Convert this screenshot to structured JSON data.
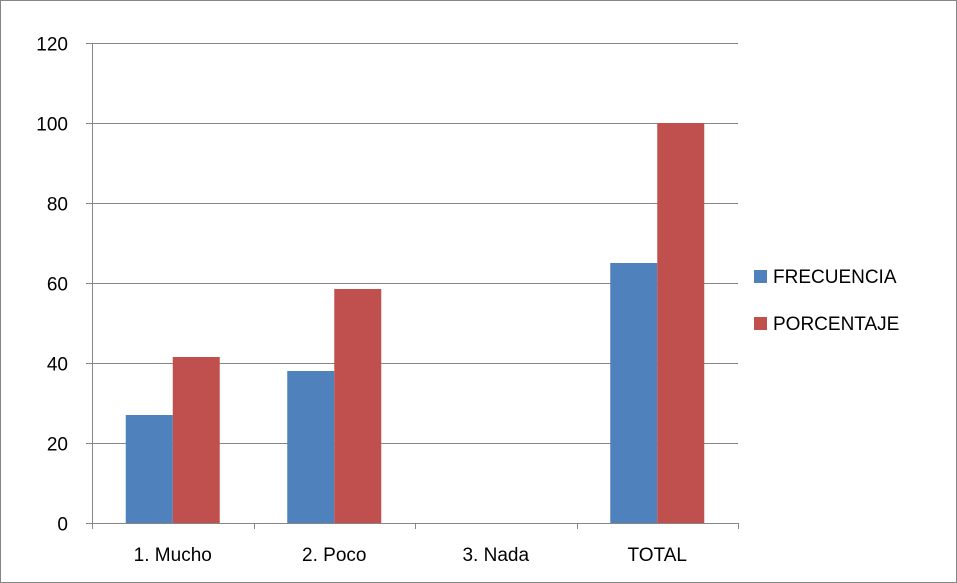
{
  "chart_data": {
    "type": "bar",
    "categories": [
      "1. Mucho",
      "2.  Poco",
      "3. Nada",
      "TOTAL"
    ],
    "series": [
      {
        "name": "FRECUENCIA",
        "values": [
          27,
          38,
          0,
          65
        ],
        "color": "#4f81bd"
      },
      {
        "name": "PORCENTAJE",
        "values": [
          41.5,
          58.5,
          0,
          100
        ],
        "color": "#c0504d"
      }
    ],
    "yticks": [
      0,
      20,
      40,
      60,
      80,
      100,
      120
    ],
    "ylim": [
      0,
      120
    ],
    "grid": true,
    "legend_position": "right"
  }
}
